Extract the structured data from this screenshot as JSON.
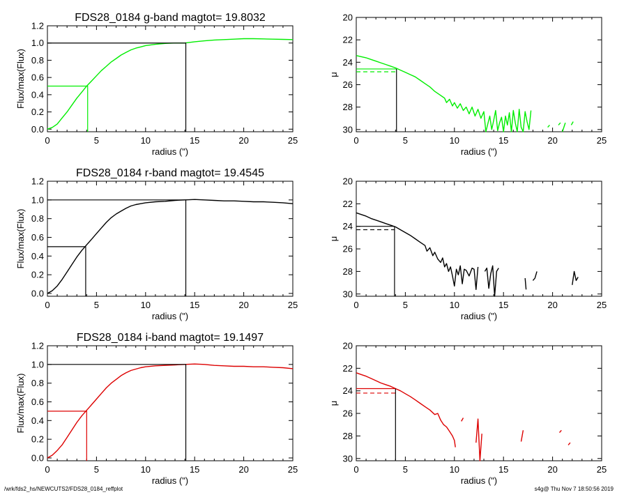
{
  "footer": {
    "left": "/wrk/fds2_hs/NEWCUTS2/FDS28_0184_reffplot",
    "right": "s4g@  Thu Nov  7 18:50:56 2019"
  },
  "colors": {
    "g": "#00ee00",
    "r": "#000000",
    "i": "#dd0000",
    "axis": "#000000",
    "guide": "#000000"
  },
  "chart_data": [
    {
      "type": "line",
      "band": "g",
      "title": "FDS28_0184 g-band  magtot=     19.8032",
      "xlabel": "radius (\")",
      "ylabel": "Flux/max(Flux)",
      "xlim": [
        0,
        25
      ],
      "ylim": [
        -0.03,
        1.2
      ],
      "xticks": [
        0,
        5,
        10,
        15,
        20,
        25
      ],
      "yticks": [
        0.0,
        0.2,
        0.4,
        0.6,
        0.8,
        1.0,
        1.2
      ],
      "ytick_labels": [
        "0.0",
        "0.2",
        "0.4",
        "0.6",
        "0.8",
        "1.0",
        "1.2"
      ],
      "reff": 4.1,
      "rmax": 14.1,
      "series": [
        {
          "x": [
            0,
            0.5,
            1,
            1.5,
            2,
            2.5,
            3,
            3.5,
            4,
            4.5,
            5,
            5.5,
            6,
            6.5,
            7,
            7.5,
            8,
            8.5,
            9,
            9.5,
            10,
            11,
            12,
            13,
            14,
            15,
            16,
            17,
            18,
            19,
            20,
            21,
            22,
            23,
            24,
            25
          ],
          "y": [
            0.0,
            0.02,
            0.06,
            0.13,
            0.2,
            0.28,
            0.36,
            0.43,
            0.5,
            0.56,
            0.62,
            0.68,
            0.73,
            0.78,
            0.82,
            0.86,
            0.89,
            0.92,
            0.94,
            0.955,
            0.97,
            0.985,
            0.995,
            1.0,
            1.0,
            1.015,
            1.025,
            1.035,
            1.04,
            1.045,
            1.05,
            1.05,
            1.048,
            1.045,
            1.042,
            1.04
          ]
        }
      ]
    },
    {
      "type": "line",
      "band": "g",
      "title": "",
      "xlabel": "radius (\")",
      "ylabel": "μ",
      "xlim": [
        0,
        25
      ],
      "ylim": [
        30.2,
        20
      ],
      "xticks": [
        0,
        5,
        10,
        15,
        20,
        25
      ],
      "yticks": [
        20,
        22,
        24,
        26,
        28,
        30
      ],
      "ytick_labels": [
        "20",
        "22",
        "24",
        "26",
        "28",
        "30"
      ],
      "reff": 4.1,
      "mu_eff": 24.6,
      "mu_mean": 24.85,
      "series": [
        {
          "x": [
            0,
            0.5,
            1,
            1.5,
            2,
            2.5,
            3,
            3.5,
            4,
            4.5,
            5,
            5.5,
            6,
            6.5,
            7,
            7.5,
            8,
            8.5,
            9,
            9.2,
            9.5,
            9.8,
            10,
            10.3,
            10.6,
            10.9,
            11.2,
            11.5,
            11.8,
            12.1,
            12.4,
            12.7,
            13,
            13.2,
            13.4,
            13.6,
            13.8,
            14,
            14.2,
            14.4,
            14.6,
            14.8,
            15,
            15.2,
            15.4,
            15.6,
            15.8,
            16,
            16.2,
            16.4,
            16.6,
            16.8,
            17,
            17.2,
            17.4,
            17.6,
            17.8
          ],
          "y": [
            23.4,
            23.5,
            23.6,
            23.75,
            23.9,
            24.05,
            24.2,
            24.35,
            24.5,
            24.7,
            24.9,
            25.1,
            25.3,
            25.6,
            25.9,
            26.2,
            26.6,
            26.9,
            27.2,
            27.6,
            27.3,
            27.9,
            27.6,
            28.1,
            27.7,
            28.3,
            28.0,
            28.6,
            28.0,
            28.8,
            28.2,
            29.0,
            28.4,
            30.2,
            29.5,
            28.8,
            30.0,
            29.2,
            28.3,
            30.1,
            29.4,
            28.9,
            30.2,
            28.8,
            29.6,
            28.5,
            30.2,
            28.3,
            29.4,
            30.2,
            28.2,
            29.8,
            30.2,
            28.4,
            29.3,
            30.0,
            28.3
          ]
        },
        {
          "x": [
            19.5,
            19.7
          ],
          "y": [
            29.8,
            29.6
          ]
        },
        {
          "x": [
            20.6,
            20.8
          ],
          "y": [
            29.6,
            29.4
          ]
        },
        {
          "x": [
            21.0,
            21.3
          ],
          "y": [
            30.2,
            29.4
          ]
        },
        {
          "x": [
            21.9,
            22.1
          ],
          "y": [
            29.6,
            29.3
          ]
        }
      ]
    },
    {
      "type": "line",
      "band": "r",
      "title": "FDS28_0184 r-band  magtot=     19.4545",
      "xlabel": "radius (\")",
      "ylabel": "Flux/max(Flux)",
      "xlim": [
        0,
        25
      ],
      "ylim": [
        -0.03,
        1.2
      ],
      "xticks": [
        0,
        5,
        10,
        15,
        20,
        25
      ],
      "yticks": [
        0.0,
        0.2,
        0.4,
        0.6,
        0.8,
        1.0,
        1.2
      ],
      "ytick_labels": [
        "0.0",
        "0.2",
        "0.4",
        "0.6",
        "0.8",
        "1.0",
        "1.2"
      ],
      "reff": 3.9,
      "rmax": 14.1,
      "series": [
        {
          "x": [
            0,
            0.5,
            1,
            1.5,
            2,
            2.5,
            3,
            3.5,
            4,
            4.5,
            5,
            5.5,
            6,
            6.5,
            7,
            7.5,
            8,
            8.5,
            9,
            9.5,
            10,
            11,
            12,
            13,
            14,
            15,
            16,
            17,
            18,
            19,
            20,
            21,
            22,
            23,
            24,
            25
          ],
          "y": [
            0.0,
            0.03,
            0.08,
            0.15,
            0.23,
            0.31,
            0.39,
            0.46,
            0.52,
            0.58,
            0.64,
            0.7,
            0.76,
            0.81,
            0.85,
            0.88,
            0.91,
            0.935,
            0.95,
            0.96,
            0.97,
            0.98,
            0.985,
            0.995,
            1.0,
            1.005,
            1.0,
            0.995,
            0.99,
            0.99,
            0.985,
            0.98,
            0.98,
            0.975,
            0.97,
            0.96
          ]
        }
      ]
    },
    {
      "type": "line",
      "band": "r",
      "title": "",
      "xlabel": "radius (\")",
      "ylabel": "μ",
      "xlim": [
        0,
        25
      ],
      "ylim": [
        30.2,
        20
      ],
      "xticks": [
        0,
        5,
        10,
        15,
        20,
        25
      ],
      "yticks": [
        20,
        22,
        24,
        26,
        28,
        30
      ],
      "ytick_labels": [
        "20",
        "22",
        "24",
        "26",
        "28",
        "30"
      ],
      "reff": 3.9,
      "mu_eff": 24.0,
      "mu_mean": 24.3,
      "series": [
        {
          "x": [
            0,
            0.5,
            1,
            1.5,
            2,
            2.5,
            3,
            3.5,
            4,
            4.5,
            5,
            5.5,
            6,
            6.5,
            7,
            7.2,
            7.5,
            7.8,
            8,
            8.3,
            8.6,
            8.8,
            9,
            9.2,
            9.4,
            9.6,
            9.8,
            10,
            10.2,
            10.4,
            10.6,
            10.8,
            11.0,
            11.2,
            11.5,
            11.8,
            12.0,
            12.2,
            12.4
          ],
          "y": [
            22.8,
            22.95,
            23.1,
            23.3,
            23.45,
            23.6,
            23.75,
            23.9,
            24.05,
            24.3,
            24.55,
            24.8,
            25.1,
            25.4,
            25.7,
            26.2,
            25.9,
            26.6,
            26.3,
            26.9,
            27.2,
            26.8,
            27.6,
            27.3,
            28.0,
            27.6,
            28.4,
            29.3,
            27.8,
            28.3,
            27.5,
            29.1,
            27.8,
            27.9,
            28.4,
            27.7,
            27.8,
            29.6,
            27.6
          ]
        },
        {
          "x": [
            13.1,
            13.3,
            13.5,
            13.7,
            13.9,
            14.1,
            14.3,
            14.5
          ],
          "y": [
            28.0,
            27.7,
            29.5,
            28.2,
            27.5,
            30.2,
            28.0,
            27.7
          ]
        },
        {
          "x": [
            17.2,
            17.3
          ],
          "y": [
            28.6,
            29.6
          ]
        },
        {
          "x": [
            18.0,
            18.2,
            18.4
          ],
          "y": [
            28.8,
            28.6,
            28.0
          ]
        },
        {
          "x": [
            22.0,
            22.2,
            22.4,
            22.6
          ],
          "y": [
            29.2,
            28.0,
            28.8,
            28.5
          ]
        }
      ]
    },
    {
      "type": "line",
      "band": "i",
      "title": "FDS28_0184 i-band  magtot=     19.1497",
      "xlabel": "radius (\")",
      "ylabel": "Flux/max(Flux)",
      "xlim": [
        0,
        25
      ],
      "ylim": [
        -0.03,
        1.2
      ],
      "xticks": [
        0,
        5,
        10,
        15,
        20,
        25
      ],
      "yticks": [
        0.0,
        0.2,
        0.4,
        0.6,
        0.8,
        1.0,
        1.2
      ],
      "ytick_labels": [
        "0.0",
        "0.2",
        "0.4",
        "0.6",
        "0.8",
        "1.0",
        "1.2"
      ],
      "reff": 4.0,
      "rmax": 14.1,
      "series": [
        {
          "x": [
            0,
            0.5,
            1,
            1.5,
            2,
            2.5,
            3,
            3.5,
            4,
            4.5,
            5,
            5.5,
            6,
            6.5,
            7,
            7.5,
            8,
            8.5,
            9,
            9.5,
            10,
            11,
            12,
            13,
            14,
            15,
            16,
            17,
            18,
            19,
            20,
            21,
            22,
            23,
            24,
            25
          ],
          "y": [
            0.0,
            0.03,
            0.08,
            0.14,
            0.22,
            0.3,
            0.38,
            0.45,
            0.51,
            0.57,
            0.63,
            0.69,
            0.75,
            0.8,
            0.84,
            0.88,
            0.91,
            0.935,
            0.95,
            0.965,
            0.975,
            0.985,
            0.99,
            0.995,
            1.0,
            1.005,
            1.0,
            0.99,
            0.985,
            0.98,
            0.98,
            0.975,
            0.975,
            0.97,
            0.965,
            0.955
          ]
        }
      ]
    },
    {
      "type": "line",
      "band": "i",
      "title": "",
      "xlabel": "radius (\")",
      "ylabel": "μ",
      "xlim": [
        0,
        25
      ],
      "ylim": [
        30.2,
        20
      ],
      "xticks": [
        0,
        5,
        10,
        15,
        20,
        25
      ],
      "yticks": [
        20,
        22,
        24,
        26,
        28,
        30
      ],
      "ytick_labels": [
        "20",
        "22",
        "24",
        "26",
        "28",
        "30"
      ],
      "reff": 4.0,
      "mu_eff": 23.8,
      "mu_mean": 24.2,
      "series": [
        {
          "x": [
            0,
            0.5,
            1,
            1.5,
            2,
            2.5,
            3,
            3.5,
            4,
            4.5,
            5,
            5.5,
            6,
            6.5,
            7,
            7.5,
            8,
            8.3,
            8.6,
            8.9,
            9.2,
            9.5,
            9.8,
            10.0,
            10.1
          ],
          "y": [
            22.4,
            22.55,
            22.7,
            22.9,
            23.1,
            23.3,
            23.45,
            23.6,
            23.8,
            24.0,
            24.25,
            24.5,
            24.8,
            25.1,
            25.4,
            25.7,
            26.1,
            26.0,
            26.6,
            27.0,
            27.2,
            27.6,
            28.0,
            28.4,
            29.0
          ]
        },
        {
          "x": [
            10.7,
            10.9
          ],
          "y": [
            26.7,
            26.4
          ]
        },
        {
          "x": [
            12.2,
            12.4,
            12.6,
            12.8
          ],
          "y": [
            28.6,
            26.5,
            30.2,
            27.8
          ]
        },
        {
          "x": [
            16.8,
            17.0
          ],
          "y": [
            28.5,
            27.5
          ]
        },
        {
          "x": [
            20.7,
            20.9
          ],
          "y": [
            27.7,
            27.5
          ]
        },
        {
          "x": [
            21.6,
            21.8
          ],
          "y": [
            28.8,
            28.6
          ]
        }
      ]
    }
  ]
}
